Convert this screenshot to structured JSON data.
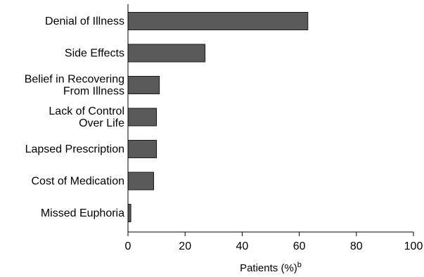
{
  "chart_data": {
    "type": "bar",
    "orientation": "horizontal",
    "categories": [
      [
        "Denial of Illness"
      ],
      [
        "Side Effects"
      ],
      [
        "Belief in Recovering",
        "From Illness"
      ],
      [
        "Lack of Control",
        "Over Life"
      ],
      [
        "Lapsed Prescription"
      ],
      [
        "Cost of Medication"
      ],
      [
        "Missed Euphoria"
      ]
    ],
    "values": [
      63,
      27,
      11,
      10,
      10,
      9,
      1
    ],
    "xlabel": "Patients (%)",
    "xlabel_superscript": "b",
    "xlim": [
      0,
      100
    ],
    "xticks": [
      "0",
      "20",
      "40",
      "60",
      "80",
      "100"
    ],
    "grid": false,
    "legend": "none",
    "colors": {
      "bar_fill": "#5a5a5a",
      "bar_stroke": "#1a1a1a",
      "axis": "#000000"
    }
  }
}
